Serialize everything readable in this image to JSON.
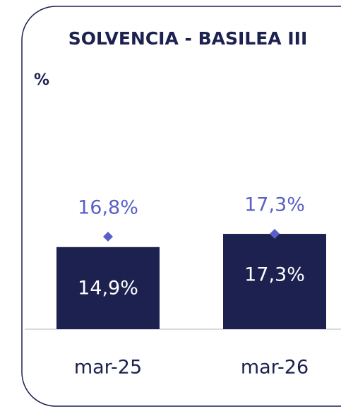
{
  "chart_data": {
    "type": "bar",
    "title": "SOLVENCIA - BASILEA III",
    "y_label": "%",
    "categories": [
      "mar-25",
      "mar-26"
    ],
    "series": [
      {
        "color": "#1c2150",
        "values": [
          14.9,
          17.3
        ],
        "value_labels": [
          "14,9%",
          "17,3%"
        ]
      },
      {
        "color": "#5a5fc8",
        "marker": "diamond",
        "values": [
          16.8,
          17.3
        ],
        "value_labels": [
          "16,8%",
          "17,3%"
        ]
      }
    ],
    "ylim": [
      0,
      25
    ]
  }
}
